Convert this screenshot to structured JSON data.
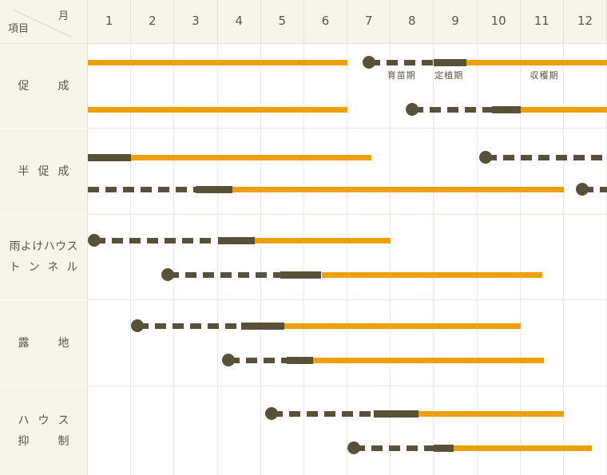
{
  "header": {
    "corner_top": "月",
    "corner_bottom": "項目",
    "months": [
      "1",
      "2",
      "3",
      "4",
      "5",
      "6",
      "7",
      "8",
      "9",
      "10",
      "11",
      "12"
    ]
  },
  "colors": {
    "harvest_orange": "#ef9e0c",
    "period_dark_olive": "#575139",
    "background_cream": "#f7f4e9",
    "grid_line": "#ebe8e1",
    "text": "#5c5544"
  },
  "chart_data": {
    "type": "gantt",
    "unit": "month",
    "x_range": [
      1,
      13
    ],
    "grid": true,
    "legend": [
      {
        "label": "育苗期",
        "kind": "seedling",
        "style": "dashed-dark-with-dot"
      },
      {
        "label": "定植期",
        "kind": "planting",
        "style": "solid-dark"
      },
      {
        "label": "収穫期",
        "kind": "harvest",
        "style": "solid-orange"
      }
    ],
    "rows": [
      {
        "label_lines": [
          "促成"
        ],
        "series": [
          {
            "segments": [
              {
                "kind": "harvest",
                "start": 1,
                "end": 7
              },
              {
                "kind": "seedling",
                "start": 7.5,
                "end": 9,
                "dot": true
              },
              {
                "kind": "planting",
                "start": 9,
                "end": 9.75
              },
              {
                "kind": "harvest",
                "start": 9.75,
                "end": 13
              }
            ],
            "annotations": [
              {
                "text": "育苗期",
                "month": 8.25
              },
              {
                "text": "定植期",
                "month": 9.35
              },
              {
                "text": "収穫期",
                "month": 11.55
              }
            ]
          },
          {
            "segments": [
              {
                "kind": "harvest",
                "start": 1,
                "end": 7
              },
              {
                "kind": "seedling",
                "start": 8.5,
                "end": 10.35,
                "dot": true
              },
              {
                "kind": "planting",
                "start": 10.35,
                "end": 11
              },
              {
                "kind": "harvest",
                "start": 11,
                "end": 13
              }
            ]
          }
        ]
      },
      {
        "label_lines": [
          "半促成"
        ],
        "series": [
          {
            "segments": [
              {
                "kind": "planting",
                "start": 1,
                "end": 2
              },
              {
                "kind": "harvest",
                "start": 2,
                "end": 7.55
              },
              {
                "kind": "seedling",
                "start": 10.2,
                "end": 13,
                "dot": true
              }
            ]
          },
          {
            "segments": [
              {
                "kind": "seedling",
                "start": 1,
                "end": 3.5,
                "dot": false
              },
              {
                "kind": "planting",
                "start": 3.5,
                "end": 4.35
              },
              {
                "kind": "harvest",
                "start": 4.35,
                "end": 12
              },
              {
                "kind": "seedling",
                "start": 12.43,
                "end": 13,
                "dot": true
              }
            ]
          }
        ]
      },
      {
        "label_lines": [
          "雨よけハウス",
          "トンネル"
        ],
        "series": [
          {
            "segments": [
              {
                "kind": "seedling",
                "start": 1.15,
                "end": 4,
                "dot": true
              },
              {
                "kind": "planting",
                "start": 4,
                "end": 4.85
              },
              {
                "kind": "harvest",
                "start": 4.85,
                "end": 8
              }
            ]
          },
          {
            "segments": [
              {
                "kind": "seedling",
                "start": 2.85,
                "end": 5.45,
                "dot": true
              },
              {
                "kind": "planting",
                "start": 5.45,
                "end": 6.4
              },
              {
                "kind": "harvest",
                "start": 6.4,
                "end": 11.5
              }
            ]
          }
        ]
      },
      {
        "label_lines": [
          "露地"
        ],
        "series": [
          {
            "segments": [
              {
                "kind": "seedling",
                "start": 2.15,
                "end": 4.55,
                "dot": true
              },
              {
                "kind": "planting",
                "start": 4.55,
                "end": 5.55
              },
              {
                "kind": "harvest",
                "start": 5.55,
                "end": 11
              }
            ]
          },
          {
            "segments": [
              {
                "kind": "seedling",
                "start": 4.25,
                "end": 5.6,
                "dot": true
              },
              {
                "kind": "planting",
                "start": 5.6,
                "end": 6.2
              },
              {
                "kind": "harvest",
                "start": 6.2,
                "end": 11.55
              }
            ]
          }
        ]
      },
      {
        "label_lines": [
          "ハウス",
          "抑制"
        ],
        "series": [
          {
            "segments": [
              {
                "kind": "seedling",
                "start": 5.25,
                "end": 7.6,
                "dot": true
              },
              {
                "kind": "planting",
                "start": 7.6,
                "end": 8.65
              },
              {
                "kind": "harvest",
                "start": 8.65,
                "end": 12
              }
            ]
          },
          {
            "segments": [
              {
                "kind": "seedling",
                "start": 7.15,
                "end": 9,
                "dot": true
              },
              {
                "kind": "planting",
                "start": 9,
                "end": 9.45
              },
              {
                "kind": "harvest",
                "start": 9.45,
                "end": 12.65
              }
            ]
          }
        ]
      }
    ]
  }
}
